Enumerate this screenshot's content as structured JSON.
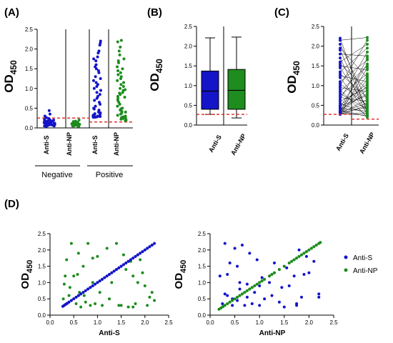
{
  "colors": {
    "anti_s": "#1414c8",
    "anti_np": "#1e8c1e",
    "cutoff": "#e02020"
  },
  "chart_data": [
    {
      "panel": "(A)",
      "type": "scatter",
      "ylabel_main": "OD",
      "ylabel_sub": "450",
      "ylim": [
        0,
        2.5
      ],
      "yticks": [
        "0.0",
        "0.5",
        "1.0",
        "1.5",
        "2.0",
        "2.5"
      ],
      "categories": [
        "Anti-S",
        "Anti-NP",
        "Anti-S",
        "Anti-NP"
      ],
      "groups": [
        "Negative",
        "Positive"
      ],
      "cutoffs": [
        0.25,
        0.15
      ],
      "series": [
        {
          "color": "anti_s",
          "values": [
            0.44,
            0.35,
            0.3,
            0.26,
            0.24,
            0.22,
            0.21,
            0.2,
            0.19,
            0.18,
            0.17,
            0.17,
            0.16,
            0.16,
            0.15,
            0.15,
            0.14,
            0.14,
            0.14,
            0.13,
            0.13,
            0.13,
            0.12,
            0.12,
            0.12,
            0.11,
            0.11,
            0.11,
            0.1,
            0.1,
            0.1,
            0.09,
            0.09,
            0.09,
            0.08,
            0.08,
            0.08,
            0.07,
            0.07,
            0.07,
            0.06,
            0.06,
            0.05,
            0.05,
            0.04
          ]
        },
        {
          "color": "anti_np",
          "values": [
            0.2,
            0.17,
            0.16,
            0.15,
            0.14,
            0.13,
            0.13,
            0.12,
            0.12,
            0.11,
            0.11,
            0.1,
            0.1,
            0.1,
            0.09,
            0.09,
            0.09,
            0.08,
            0.08,
            0.08,
            0.07,
            0.07,
            0.07,
            0.06,
            0.06,
            0.06,
            0.05,
            0.05,
            0.04,
            0.04
          ]
        },
        {
          "color": "anti_s",
          "values": [
            2.2,
            2.15,
            2.1,
            1.95,
            1.9,
            1.8,
            1.75,
            1.7,
            1.6,
            1.55,
            1.5,
            1.45,
            1.4,
            1.3,
            1.25,
            1.2,
            1.15,
            1.1,
            1.05,
            1.0,
            0.95,
            0.9,
            0.85,
            0.8,
            0.75,
            0.7,
            0.65,
            0.6,
            0.55,
            0.5,
            0.48,
            0.45,
            0.42,
            0.4,
            0.38,
            0.36,
            0.34,
            0.33,
            0.32,
            0.31,
            0.3,
            0.3,
            0.29,
            0.29,
            0.28,
            0.28,
            0.27,
            0.27
          ]
        },
        {
          "color": "anti_np",
          "values": [
            2.22,
            2.18,
            2.05,
            1.95,
            1.85,
            1.75,
            1.7,
            1.65,
            1.55,
            1.5,
            1.45,
            1.4,
            1.35,
            1.3,
            1.25,
            1.2,
            1.15,
            1.1,
            1.05,
            1.0,
            0.97,
            0.95,
            0.9,
            0.88,
            0.85,
            0.8,
            0.78,
            0.75,
            0.7,
            0.65,
            0.6,
            0.55,
            0.5,
            0.48,
            0.45,
            0.42,
            0.4,
            0.38,
            0.35,
            0.32,
            0.3,
            0.28,
            0.26,
            0.25,
            0.24,
            0.22,
            0.2,
            0.18
          ]
        }
      ]
    },
    {
      "panel": "(B)",
      "type": "box",
      "ylabel_main": "OD",
      "ylabel_sub": "450",
      "ylim": [
        0,
        2.5
      ],
      "yticks": [
        "0.0",
        "0.5",
        "1.0",
        "1.5",
        "2.0",
        "2.5"
      ],
      "categories": [
        "Anti-S",
        "Anti-NP"
      ],
      "cutoff": 0.27,
      "boxes": [
        {
          "color": "anti_s",
          "min": 0.27,
          "q1": 0.4,
          "median": 0.86,
          "q3": 1.37,
          "max": 2.21
        },
        {
          "color": "anti_np",
          "min": 0.18,
          "q1": 0.4,
          "median": 0.88,
          "q3": 1.41,
          "max": 2.23
        }
      ]
    },
    {
      "panel": "(C)",
      "type": "paired",
      "ylabel_main": "OD",
      "ylabel_sub": "450",
      "ylim": [
        0,
        2.5
      ],
      "yticks": [
        "0.0",
        "0.5",
        "1.0",
        "1.5",
        "2.0",
        "2.5"
      ],
      "categories": [
        "Anti-S",
        "Anti-NP"
      ],
      "cutoffs": [
        0.27,
        0.15
      ],
      "pairs": [
        [
          2.2,
          0.3
        ],
        [
          2.15,
          2.22
        ],
        [
          2.05,
          0.6
        ],
        [
          1.95,
          1.2
        ],
        [
          1.9,
          0.35
        ],
        [
          1.8,
          1.75
        ],
        [
          1.7,
          0.25
        ],
        [
          1.6,
          2.05
        ],
        [
          1.55,
          0.9
        ],
        [
          1.5,
          1.4
        ],
        [
          1.45,
          0.45
        ],
        [
          1.35,
          1.95
        ],
        [
          1.3,
          0.7
        ],
        [
          1.25,
          1.1
        ],
        [
          1.2,
          0.3
        ],
        [
          1.1,
          1.65
        ],
        [
          1.05,
          0.5
        ],
        [
          1.0,
          2.15
        ],
        [
          0.95,
          0.85
        ],
        [
          0.9,
          0.2
        ],
        [
          0.85,
          1.5
        ],
        [
          0.8,
          0.4
        ],
        [
          0.75,
          1.3
        ],
        [
          0.7,
          0.6
        ],
        [
          0.65,
          1.85
        ],
        [
          0.6,
          0.95
        ],
        [
          0.55,
          0.28
        ],
        [
          0.5,
          1.05
        ],
        [
          0.48,
          0.75
        ],
        [
          0.45,
          1.55
        ],
        [
          0.42,
          0.35
        ],
        [
          0.4,
          0.8
        ],
        [
          0.38,
          1.25
        ],
        [
          0.36,
          0.22
        ],
        [
          0.34,
          1.0
        ],
        [
          0.33,
          0.55
        ],
        [
          0.32,
          1.7
        ],
        [
          0.31,
          0.45
        ],
        [
          0.3,
          0.9
        ],
        [
          0.3,
          0.3
        ],
        [
          0.29,
          1.15
        ],
        [
          0.29,
          0.65
        ],
        [
          0.28,
          0.25
        ],
        [
          0.28,
          1.45
        ],
        [
          0.27,
          0.5
        ]
      ]
    },
    {
      "panel": "(D)",
      "type": "scatter",
      "xlabel": "Anti-S",
      "ylabel_main": "OD",
      "ylabel_sub": "450",
      "xlim": [
        0,
        2.5
      ],
      "ylim": [
        0,
        2.5
      ],
      "xticks": [
        "0.0",
        "0.5",
        "1.0",
        "1.5",
        "2.0",
        "2.5"
      ],
      "yticks": [
        "0.0",
        "0.5",
        "1.0",
        "1.5",
        "2.0",
        "2.5"
      ],
      "series": [
        {
          "color": "anti_s",
          "identity": true,
          "x": [
            0.27,
            0.3,
            0.33,
            0.36,
            0.4,
            0.45,
            0.5,
            0.55,
            0.6,
            0.65,
            0.7,
            0.75,
            0.8,
            0.85,
            0.9,
            0.95,
            1.0,
            1.05,
            1.1,
            1.15,
            1.2,
            1.25,
            1.3,
            1.35,
            1.4,
            1.45,
            1.5,
            1.55,
            1.6,
            1.65,
            1.7,
            1.75,
            1.8,
            1.85,
            1.9,
            1.95,
            2.0,
            2.05,
            2.1,
            2.15,
            2.2
          ]
        },
        {
          "color": "anti_np",
          "x": [
            0.3,
            0.35,
            0.4,
            0.45,
            0.5,
            0.55,
            0.6,
            0.65,
            0.7,
            0.75,
            0.8,
            0.85,
            0.9,
            0.95,
            1.0,
            1.05,
            1.1,
            1.2,
            1.3,
            1.4,
            1.5,
            1.55,
            1.6,
            1.65,
            1.7,
            1.75,
            1.8,
            1.85,
            1.9,
            2.0,
            2.05,
            2.1,
            2.15,
            2.2,
            0.28,
            0.32,
            0.42,
            0.58,
            0.62,
            0.72,
            0.9,
            1.25,
            1.45,
            1.75,
            1.95
          ],
          "y": [
            0.95,
            1.7,
            0.6,
            2.2,
            1.2,
            0.35,
            1.9,
            0.25,
            1.5,
            0.4,
            2.2,
            0.3,
            1.0,
            0.35,
            1.8,
            0.7,
            0.3,
            2.05,
            1.0,
            2.2,
            0.3,
            1.85,
            1.4,
            0.25,
            1.65,
            1.2,
            0.35,
            1.0,
            1.7,
            0.9,
            0.3,
            0.55,
            0.7,
            0.45,
            0.5,
            1.2,
            0.85,
            1.25,
            0.7,
            0.6,
            1.75,
            0.5,
            0.3,
            0.25,
            1.3
          ]
        }
      ]
    },
    {
      "panel": "",
      "type": "scatter",
      "xlabel": "Anti-NP",
      "ylabel_main": "OD",
      "ylabel_sub": "450",
      "xlim": [
        0,
        2.5
      ],
      "ylim": [
        0,
        2.5
      ],
      "xticks": [
        "0.0",
        "0.5",
        "1.0",
        "1.5",
        "2.0",
        "2.5"
      ],
      "yticks": [
        "0.0",
        "0.5",
        "1.0",
        "1.5",
        "2.0",
        "2.5"
      ],
      "legend": [
        "Anti-S",
        "Anti-NP"
      ],
      "series": [
        {
          "color": "anti_np",
          "identity": true,
          "x": [
            0.18,
            0.22,
            0.26,
            0.3,
            0.35,
            0.4,
            0.45,
            0.5,
            0.55,
            0.6,
            0.65,
            0.7,
            0.75,
            0.8,
            0.85,
            0.9,
            0.95,
            1.0,
            1.05,
            1.1,
            1.2,
            1.25,
            1.3,
            1.4,
            1.5,
            1.6,
            1.65,
            1.7,
            1.75,
            1.8,
            1.85,
            1.9,
            1.95,
            2.0,
            2.05,
            2.1,
            2.15,
            2.2,
            2.23
          ]
        },
        {
          "color": "anti_s",
          "x": [
            0.2,
            0.25,
            0.3,
            0.35,
            0.4,
            0.45,
            0.5,
            0.55,
            0.6,
            0.65,
            0.7,
            0.75,
            0.8,
            0.85,
            0.9,
            0.95,
            1.0,
            1.05,
            1.1,
            1.2,
            1.3,
            1.4,
            1.5,
            1.55,
            1.6,
            1.7,
            1.75,
            1.8,
            1.85,
            1.9,
            2.0,
            2.1,
            2.2,
            0.3,
            0.45,
            0.6,
            0.75,
            0.35,
            0.55,
            1.0,
            1.25,
            1.45,
            1.75,
            1.95,
            2.2
          ],
          "y": [
            1.2,
            0.35,
            2.2,
            0.6,
            1.6,
            0.3,
            2.05,
            0.45,
            1.0,
            2.15,
            0.3,
            0.95,
            1.9,
            0.35,
            0.7,
            1.7,
            0.3,
            1.15,
            0.5,
            1.0,
            1.6,
            0.4,
            0.25,
            1.45,
            0.9,
            1.2,
            0.35,
            2.0,
            0.55,
            1.25,
            1.3,
            1.65,
            0.55,
            0.65,
            0.5,
            0.8,
            0.55,
            1.25,
            1.5,
            0.9,
            0.6,
            0.85,
            0.3,
            1.8,
            0.65
          ]
        }
      ]
    }
  ]
}
